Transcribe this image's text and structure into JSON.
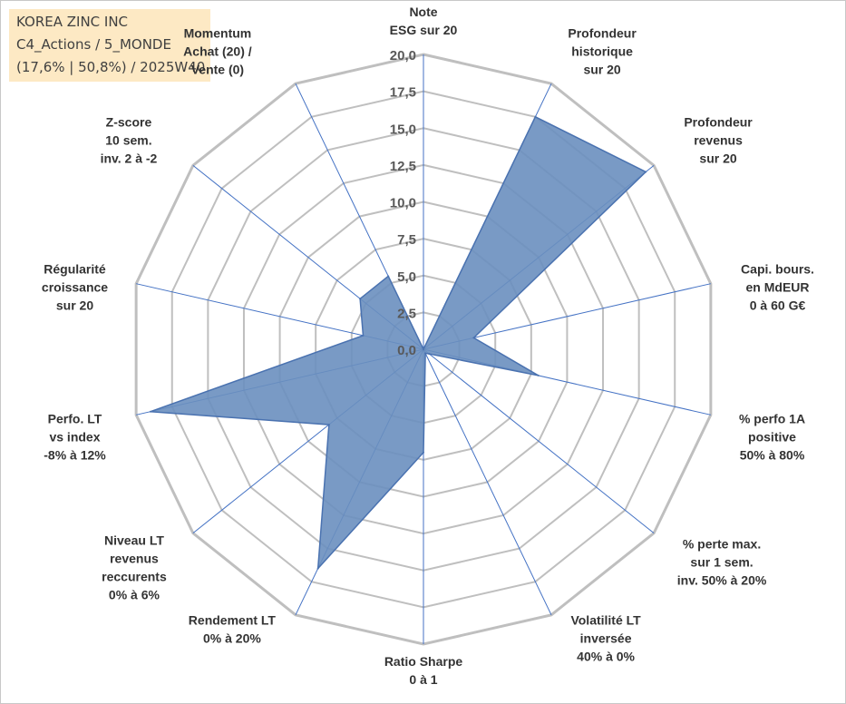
{
  "info": {
    "company": "KOREA ZINC INC",
    "category": "C4_Actions / 5_MONDE",
    "stats": "(17,6% | 50,8%) / 2025W40"
  },
  "colors": {
    "fill": "#6a8fbf",
    "stroke": "#4a72b0",
    "grid": "#bfbfbf",
    "spoke": "#4472c4",
    "info_bg": "#fde9c4"
  },
  "chart_data": {
    "type": "radar",
    "title": "",
    "rmin": 0,
    "rmax": 20,
    "ticks": [
      "0,0",
      "2,5",
      "5,0",
      "7,5",
      "10,0",
      "12,5",
      "15,0",
      "17,5",
      "20,0"
    ],
    "axes": [
      {
        "label": [
          "Note",
          "ESG sur 20"
        ],
        "value": 0
      },
      {
        "label": [
          "Profondeur",
          "historique",
          "sur 20"
        ],
        "value": 17.5
      },
      {
        "label": [
          "Profondeur",
          "revenus",
          "sur 20"
        ],
        "value": 19.3
      },
      {
        "label": [
          "Capi. bours.",
          "en MdEUR",
          "0 à 60 G€"
        ],
        "value": 3.5
      },
      {
        "label": [
          "% perfo 1A",
          "positive",
          "50% à 80%"
        ],
        "value": 8.0
      },
      {
        "label": [
          "% perte max.",
          "sur 1 sem.",
          "inv. 50% à 20%"
        ],
        "value": 0.5
      },
      {
        "label": [
          "Volatilité LT",
          "inversée",
          "40% à 0%"
        ],
        "value": 0.3
      },
      {
        "label": [
          "Ratio Sharpe",
          "0 à 1"
        ],
        "value": 7.0
      },
      {
        "label": [
          "Rendement LT",
          "0% à 20%"
        ],
        "value": 16.5
      },
      {
        "label": [
          "Niveau LT",
          "revenus",
          "reccurents",
          "0% à 6%"
        ],
        "value": 8.2
      },
      {
        "label": [
          "Perfo. LT",
          "vs index",
          "-8% à 12%"
        ],
        "value": 19.0
      },
      {
        "label": [
          "Régularité",
          "croissance",
          "sur 20"
        ],
        "value": 4.2
      },
      {
        "label": [
          "Z-score",
          "10 sem.",
          "inv. 2 à -2"
        ],
        "value": 5.5
      },
      {
        "label": [
          "Momentum",
          "Achat (20) /",
          "Vente (0)"
        ],
        "value": 5.5
      }
    ]
  }
}
